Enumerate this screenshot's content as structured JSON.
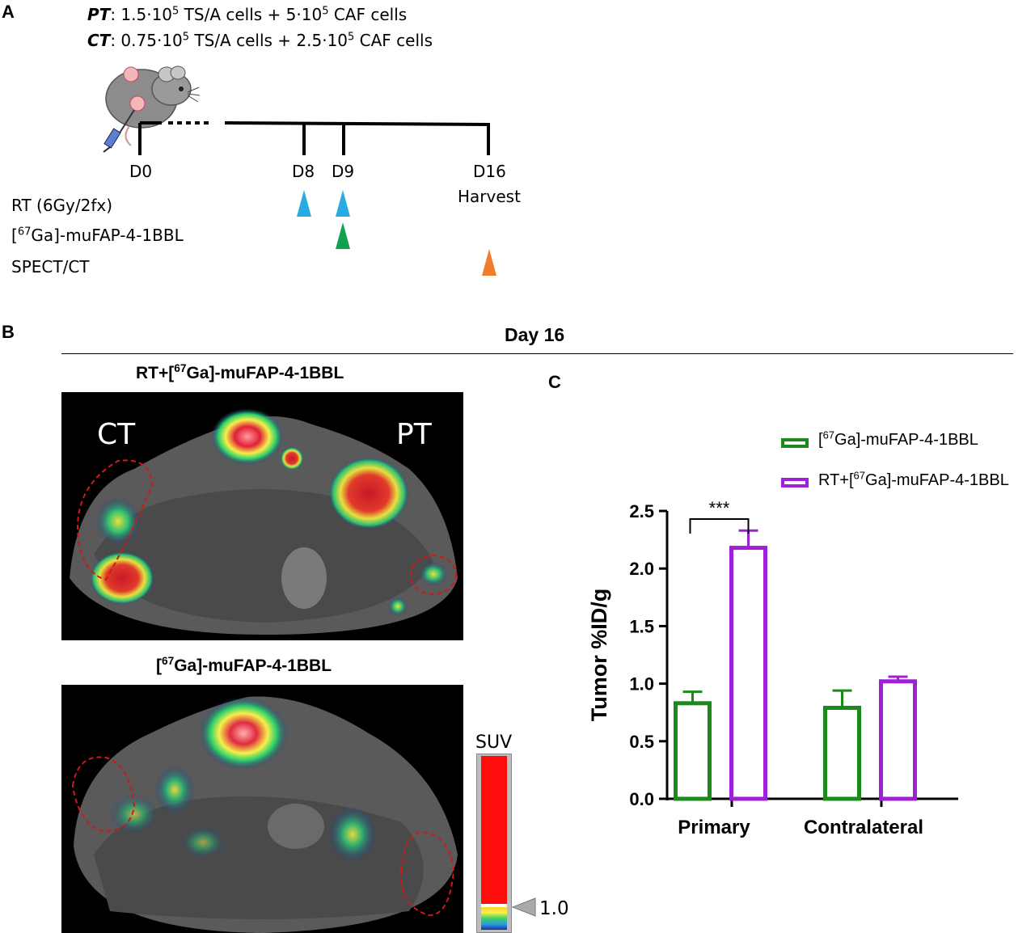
{
  "panel_a": {
    "label": "A",
    "pt_key": "PT",
    "pt_text": ": 1.5·10",
    "pt_exp1": "5",
    "pt_text2": " TS/A cells + 5·10",
    "pt_exp2": "5",
    "pt_text3": " CAF cells",
    "ct_key": "CT",
    "ct_text": ": 0.75·10",
    "ct_exp1": "5",
    "ct_text2": " TS/A cells + 2.5·10",
    "ct_exp2": "5",
    "ct_text3": " CAF cells",
    "days": [
      "D0",
      "D8",
      "D9",
      "D16"
    ],
    "harvest": "Harvest",
    "rows": {
      "rt": "RT (6Gy/2fx)",
      "tracer_sup": "67",
      "tracer_pre": "[",
      "tracer_post": "Ga]-muFAP-4-1BBL",
      "spect": "SPECT/CT"
    },
    "colors": {
      "rt": "#29abe2",
      "tracer": "#12a150",
      "spect": "#f07c2e"
    }
  },
  "panel_b": {
    "label": "B",
    "day_title": "Day 16",
    "top_title_pre": "RT+[",
    "top_title_sup": "67",
    "top_title_post": "Ga]-muFAP-4-1BBL",
    "bottom_title_pre": "[",
    "bottom_title_sup": "67",
    "bottom_title_post": "Ga]-muFAP-4-1BBL",
    "ct_label": "CT",
    "pt_label": "PT",
    "colorbar_title": "SUV",
    "colorbar_value": "1.0"
  },
  "panel_c": {
    "label": "C"
  },
  "chart_data": {
    "type": "bar",
    "categories": [
      "Primary",
      "Contralateral"
    ],
    "series": [
      {
        "name": "[67Ga]-muFAP-4-1BBL",
        "name_pre": "[",
        "name_sup": "67",
        "name_post": "Ga]-muFAP-4-1BBL",
        "values": [
          0.83,
          0.79
        ],
        "errors": [
          0.1,
          0.15
        ],
        "color": "#1a8a1a"
      },
      {
        "name": "RT+[67Ga]-muFAP-4-1BBL",
        "name_pre": "RT+[",
        "name_sup": "67",
        "name_post": "Ga]-muFAP-4-1BBL",
        "values": [
          2.18,
          1.02
        ],
        "errors": [
          0.15,
          0.04
        ],
        "color": "#a020d8"
      }
    ],
    "ylabel": "Tumor %ID/g",
    "ylim": [
      0,
      2.5
    ],
    "yticks": [
      "0.0",
      "0.5",
      "1.0",
      "1.5",
      "2.0",
      "2.5"
    ],
    "significance": {
      "label": "***",
      "category": "Primary"
    },
    "legend_position": "top-right"
  }
}
